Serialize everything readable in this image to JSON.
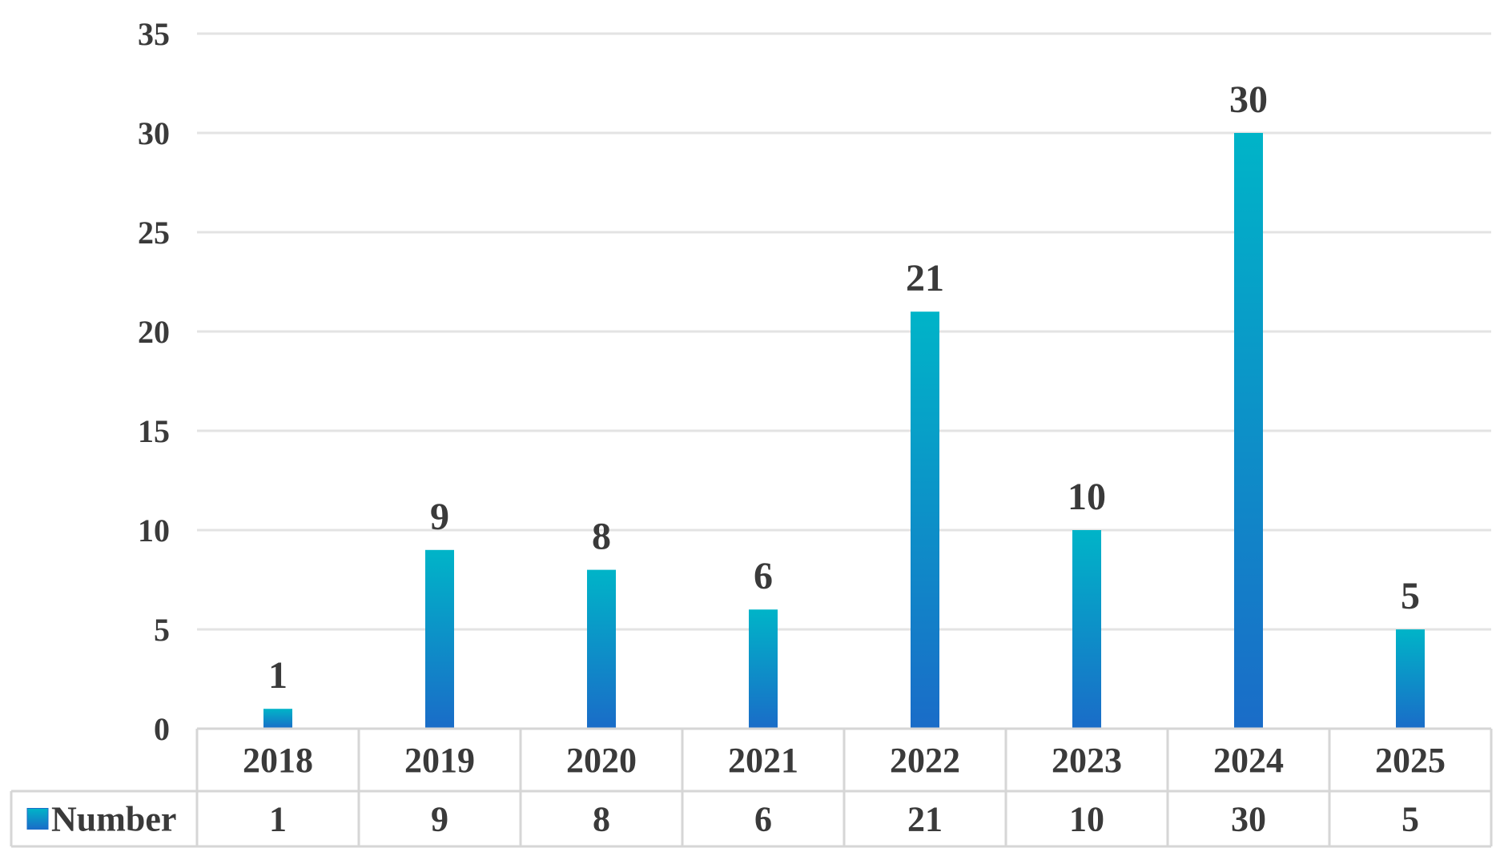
{
  "chart_data": {
    "type": "bar",
    "categories": [
      "2018",
      "2019",
      "2020",
      "2021",
      "2022",
      "2023",
      "2024",
      "2025"
    ],
    "series": [
      {
        "name": "Number",
        "values": [
          1,
          9,
          8,
          6,
          21,
          10,
          30,
          5
        ]
      }
    ],
    "ylim": [
      0,
      35
    ],
    "yticks": [
      0,
      5,
      10,
      15,
      20,
      25,
      30,
      35
    ],
    "yticks_labels": [
      "0",
      "5",
      "10",
      "15",
      "20",
      "25",
      "30",
      "35"
    ],
    "grid": true,
    "data_labels": true,
    "data_table": true,
    "legend": "data-table",
    "colors": {
      "bar_top": "#00b4c8",
      "bar_bottom": "#1a6cc8",
      "grid": "#e3e3e3",
      "text": "#3a3a3a"
    }
  }
}
